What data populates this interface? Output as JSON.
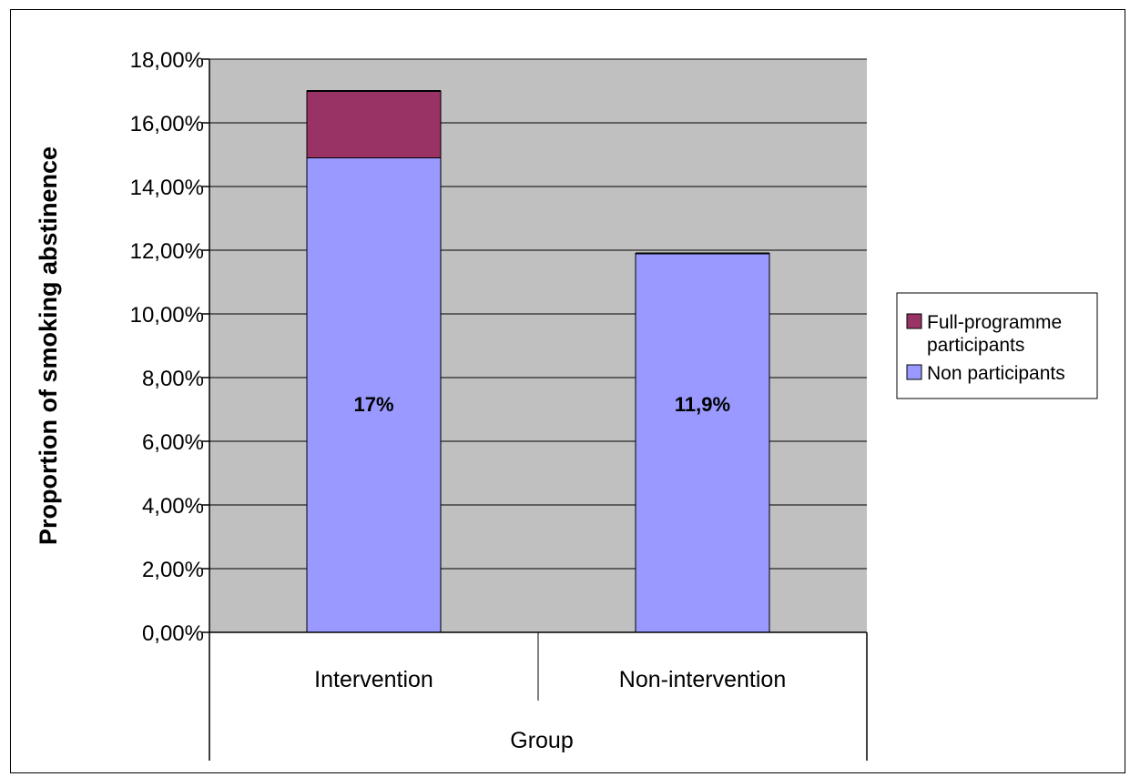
{
  "chart_data": {
    "type": "bar",
    "stacked": true,
    "categories": [
      "Intervention",
      "Non-intervention"
    ],
    "series": [
      {
        "name": "Non participants",
        "values": [
          14.9,
          11.9
        ],
        "color": "#9999ff"
      },
      {
        "name": "Full-programme participants",
        "values": [
          2.1,
          0
        ],
        "color": "#993366"
      }
    ],
    "data_labels": [
      "17%",
      "11,9%"
    ],
    "ylabel": "Proportion of smoking abstinence",
    "xlabel": "Group",
    "ylim": [
      0,
      18
    ],
    "yticks": [
      0,
      2,
      4,
      6,
      8,
      10,
      12,
      14,
      16,
      18
    ],
    "ytick_labels": [
      "0,00%",
      "2,00%",
      "4,00%",
      "6,00%",
      "8,00%",
      "10,00%",
      "12,00%",
      "14,00%",
      "16,00%",
      "18,00%"
    ],
    "legend_position": "right",
    "legend": [
      "Full-programme participants",
      "Non participants"
    ],
    "grid": true,
    "plot_background": "#c0c0c0"
  }
}
